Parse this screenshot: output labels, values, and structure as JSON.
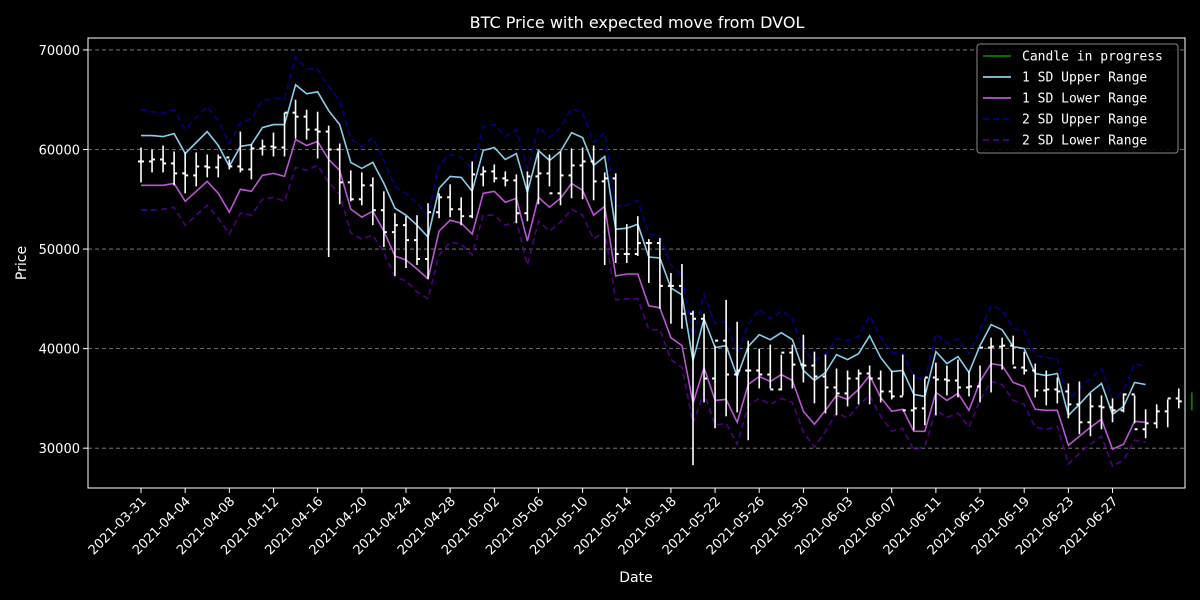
{
  "chart_data": {
    "type": "line",
    "title": "BTC Price with expected move from DVOL",
    "xlabel": "Date",
    "ylabel": "Price",
    "ylim": [
      26000,
      71200
    ],
    "yticks": [
      30000,
      40000,
      50000,
      60000,
      70000
    ],
    "grid": "horizontal dashed",
    "legend_position": "upper-right",
    "start_date": "2021-03-31",
    "xtick_labels": [
      "2021-03-31",
      "2021-04-04",
      "2021-04-08",
      "2021-04-12",
      "2021-04-16",
      "2021-04-20",
      "2021-04-24",
      "2021-04-28",
      "2021-05-02",
      "2021-05-06",
      "2021-05-10",
      "2021-05-14",
      "2021-05-18",
      "2021-05-22",
      "2021-05-26",
      "2021-05-30",
      "2021-06-03",
      "2021-06-07",
      "2021-06-11",
      "2021-06-15",
      "2021-06-19",
      "2021-06-23",
      "2021-06-27"
    ],
    "colors": {
      "background": "#000000",
      "candles": "#ffffff",
      "in_progress": "#008000",
      "upper_1sd": "#87ceeb",
      "lower_1sd": "#ba55d3",
      "upper_2sd": "#00008b",
      "lower_2sd": "#4b0082"
    },
    "legend": [
      {
        "label": "Candle in progress",
        "color": "#008000",
        "dash": "solid"
      },
      {
        "label": "1 SD Upper Range",
        "color": "#87ceeb",
        "dash": "solid"
      },
      {
        "label": "1 SD Lower Range",
        "color": "#ba55d3",
        "dash": "solid"
      },
      {
        "label": "2 SD Upper Range",
        "color": "#00008b",
        "dash": "dashed"
      },
      {
        "label": "2 SD Lower Range",
        "color": "#4b0082",
        "dash": "dashed"
      }
    ],
    "candles": {
      "open": [
        58800,
        58800,
        59000,
        58600,
        57600,
        57400,
        58300,
        58200,
        59200,
        58300,
        58000,
        60100,
        60300,
        60200,
        63700,
        63300,
        62000,
        61800,
        60000,
        56700,
        55000,
        56400,
        53900,
        51700,
        52400,
        50900,
        49000,
        53700,
        55200,
        54000,
        53300,
        57500,
        57800,
        57100,
        56900,
        53600,
        57300,
        57600,
        55600,
        57400,
        58400,
        58800,
        56800,
        57100,
        49500,
        49500,
        50600,
        50600,
        46300,
        46300,
        43500,
        43000,
        37000,
        40800,
        37400,
        37800,
        37800,
        37400,
        35900,
        39600,
        38400,
        38300,
        37200,
        36100,
        35500,
        37000,
        37500,
        37000,
        35700,
        35200,
        33800,
        34000,
        37100,
        36900,
        36800,
        36100,
        36200,
        40100,
        40200,
        40300,
        38100,
        37800,
        35800,
        35900,
        35700,
        34400,
        32600,
        34200,
        34100,
        33800,
        35400,
        31900,
        32500,
        33700,
        35000
      ],
      "high": [
        60200,
        60000,
        60400,
        59800,
        59700,
        59700,
        59500,
        59500,
        59000,
        61800,
        60500,
        61000,
        61700,
        63700,
        65000,
        64000,
        63800,
        62400,
        60600,
        57900,
        57700,
        57200,
        55800,
        53600,
        53300,
        53400,
        54600,
        55600,
        56500,
        55200,
        58800,
        58300,
        58500,
        57800,
        57500,
        57800,
        59700,
        59500,
        59800,
        60100,
        60200,
        60400,
        57700,
        57600,
        52500,
        53300,
        51000,
        51100,
        47600,
        48500,
        43800,
        43500,
        40300,
        44900,
        42700,
        40800,
        40000,
        40400,
        39400,
        40400,
        41400,
        39700,
        39400,
        38000,
        37800,
        37900,
        38300,
        37800,
        37800,
        39400,
        37400,
        37000,
        38600,
        38300,
        38900,
        37700,
        38300,
        41100,
        41100,
        41300,
        39700,
        38500,
        37800,
        37100,
        36500,
        36700,
        35500,
        35300,
        35000,
        35500,
        35300,
        33900,
        34400,
        34900,
        36000
      ],
      "low": [
        56700,
        57700,
        57700,
        56400,
        55600,
        56300,
        57200,
        57200,
        58000,
        57700,
        57000,
        59400,
        59300,
        59300,
        61100,
        61000,
        59100,
        49200,
        54500,
        54800,
        54400,
        52400,
        50200,
        47300,
        48100,
        48400,
        47000,
        53100,
        53200,
        52400,
        53100,
        56300,
        56700,
        56300,
        52600,
        52800,
        54500,
        56300,
        54400,
        55100,
        55000,
        54900,
        48400,
        48600,
        48600,
        49300,
        46600,
        44000,
        42500,
        42000,
        28300,
        34600,
        32000,
        33200,
        33600,
        30800,
        36000,
        36000,
        35800,
        36000,
        36600,
        34500,
        33500,
        33300,
        34200,
        34400,
        34400,
        34600,
        34900,
        35300,
        31800,
        32300,
        33300,
        35300,
        35100,
        35200,
        34600,
        35600,
        37900,
        38400,
        37400,
        35100,
        34300,
        34500,
        33000,
        31400,
        31200,
        31900,
        32600,
        33600,
        32500,
        31000,
        32000,
        32100,
        34000
      ],
      "close": [
        58800,
        59000,
        58600,
        57600,
        57400,
        58300,
        58200,
        59200,
        58300,
        58000,
        60100,
        60300,
        60200,
        63700,
        63300,
        62000,
        61800,
        60000,
        56700,
        55000,
        56400,
        53900,
        51700,
        52400,
        50900,
        49000,
        53700,
        55200,
        54000,
        53300,
        57500,
        57800,
        57100,
        56900,
        53600,
        57300,
        57600,
        55600,
        57400,
        58400,
        58800,
        56800,
        57100,
        49500,
        49500,
        50600,
        50600,
        46300,
        46300,
        43500,
        43000,
        37000,
        40800,
        37400,
        37800,
        37800,
        37400,
        35900,
        39600,
        38400,
        38300,
        37200,
        36100,
        35500,
        37000,
        37500,
        37000,
        35700,
        35200,
        33800,
        34000,
        37100,
        36900,
        36800,
        36100,
        36200,
        40100,
        40200,
        40300,
        38100,
        37800,
        35800,
        35900,
        35700,
        34400,
        32600,
        34200,
        34100,
        33800,
        35400,
        31900,
        32500,
        33700,
        35000,
        34700
      ]
    },
    "in_progress": {
      "high": 35600,
      "low": 33800
    },
    "series": [
      {
        "name": "1 SD Upper Range",
        "values": [
          61400,
          61400,
          61300,
          61600,
          59600,
          60700,
          61800,
          60400,
          58300,
          60300,
          60500,
          62200,
          62500,
          62500,
          66500,
          65600,
          65800,
          63900,
          62500,
          58700,
          58100,
          58700,
          56600,
          54100,
          53400,
          52400,
          51200,
          56100,
          57300,
          57200,
          55800,
          59900,
          60200,
          59000,
          59600,
          55700,
          59900,
          58900,
          59800,
          61700,
          61200,
          58400,
          59300,
          52000,
          52100,
          52500,
          49200,
          49100,
          46100,
          45400,
          38800,
          43000,
          40100,
          40300,
          37200,
          40200,
          41400,
          40900,
          41600,
          40900,
          37800,
          36800,
          37600,
          39400,
          38900,
          39500,
          41300,
          39100,
          37700,
          37800,
          35400,
          35200,
          39700,
          38500,
          39200,
          37600,
          40300,
          42400,
          41900,
          40200,
          40000,
          37500,
          37300,
          37500,
          33300,
          34400,
          35600,
          36500,
          33400,
          34200,
          36600,
          36400
        ],
        "dash": "solid",
        "color": "#87ceeb"
      },
      {
        "name": "1 SD Lower Range",
        "values": [
          56400,
          56400,
          56400,
          56600,
          54800,
          55800,
          56800,
          55600,
          53700,
          56000,
          55800,
          57400,
          57600,
          57300,
          61000,
          60400,
          60800,
          59000,
          57900,
          54000,
          53200,
          53800,
          51800,
          49300,
          48900,
          48000,
          47000,
          51800,
          52900,
          52600,
          51500,
          55600,
          55800,
          54700,
          55100,
          50800,
          55200,
          54200,
          55100,
          56600,
          55900,
          53400,
          54300,
          47300,
          47500,
          47500,
          44300,
          44100,
          41100,
          40300,
          34500,
          38100,
          34800,
          34900,
          32600,
          36400,
          37200,
          36700,
          37400,
          36800,
          33700,
          32400,
          33800,
          35300,
          34900,
          35900,
          37300,
          35100,
          33700,
          33900,
          31700,
          31700,
          35600,
          34800,
          35500,
          33800,
          36700,
          38500,
          38300,
          36600,
          36200,
          33900,
          33800,
          33800,
          30300,
          31200,
          32100,
          32900,
          29900,
          30400,
          32700,
          32600
        ],
        "dash": "solid",
        "color": "#ba55d3"
      },
      {
        "name": "2 SD Upper Range",
        "values": [
          64000,
          63800,
          63700,
          64000,
          62000,
          63200,
          64300,
          62900,
          60600,
          62700,
          63100,
          64900,
          65100,
          65100,
          69300,
          68100,
          68100,
          66300,
          64900,
          61100,
          60300,
          61200,
          58900,
          56300,
          55600,
          54600,
          53400,
          58500,
          59500,
          59200,
          58000,
          62300,
          62500,
          61300,
          62000,
          58100,
          62200,
          61200,
          62200,
          64100,
          63700,
          60700,
          61700,
          54300,
          54400,
          54900,
          51500,
          51300,
          48400,
          47400,
          40800,
          45500,
          42500,
          42700,
          39500,
          42400,
          44000,
          43000,
          43800,
          43000,
          39800,
          38800,
          39400,
          41000,
          40800,
          41200,
          43300,
          41100,
          39600,
          39600,
          37200,
          36800,
          41500,
          40500,
          41000,
          39500,
          41900,
          44300,
          43900,
          42000,
          41800,
          39300,
          39100,
          39000,
          34700,
          36000,
          37000,
          38000,
          34900,
          35700,
          38500,
          38200
        ],
        "dash": "dashed",
        "color": "#00008b"
      },
      {
        "name": "2 SD Lower Range",
        "values": [
          53900,
          53900,
          54000,
          54200,
          52400,
          53400,
          54400,
          53100,
          51500,
          53600,
          53400,
          55000,
          55200,
          54800,
          58200,
          57900,
          58400,
          56700,
          55500,
          51600,
          51000,
          51400,
          49600,
          47200,
          46800,
          45700,
          45000,
          49400,
          50700,
          50500,
          49400,
          53400,
          53400,
          52400,
          52800,
          48400,
          52800,
          51800,
          52700,
          54000,
          53400,
          51000,
          51800,
          44900,
          45000,
          45000,
          41900,
          41900,
          38900,
          38100,
          32500,
          35600,
          32300,
          32500,
          30400,
          34300,
          35000,
          34400,
          35000,
          34600,
          31600,
          30100,
          31700,
          33600,
          33000,
          34300,
          35300,
          33200,
          31700,
          32000,
          29800,
          30200,
          33800,
          33100,
          33500,
          32100,
          34800,
          36700,
          36400,
          34800,
          34400,
          32100,
          31900,
          32200,
          28400,
          29500,
          30400,
          31200,
          28200,
          28800,
          30800,
          30600
        ],
        "dash": "dashed",
        "color": "#4b0082"
      }
    ]
  }
}
